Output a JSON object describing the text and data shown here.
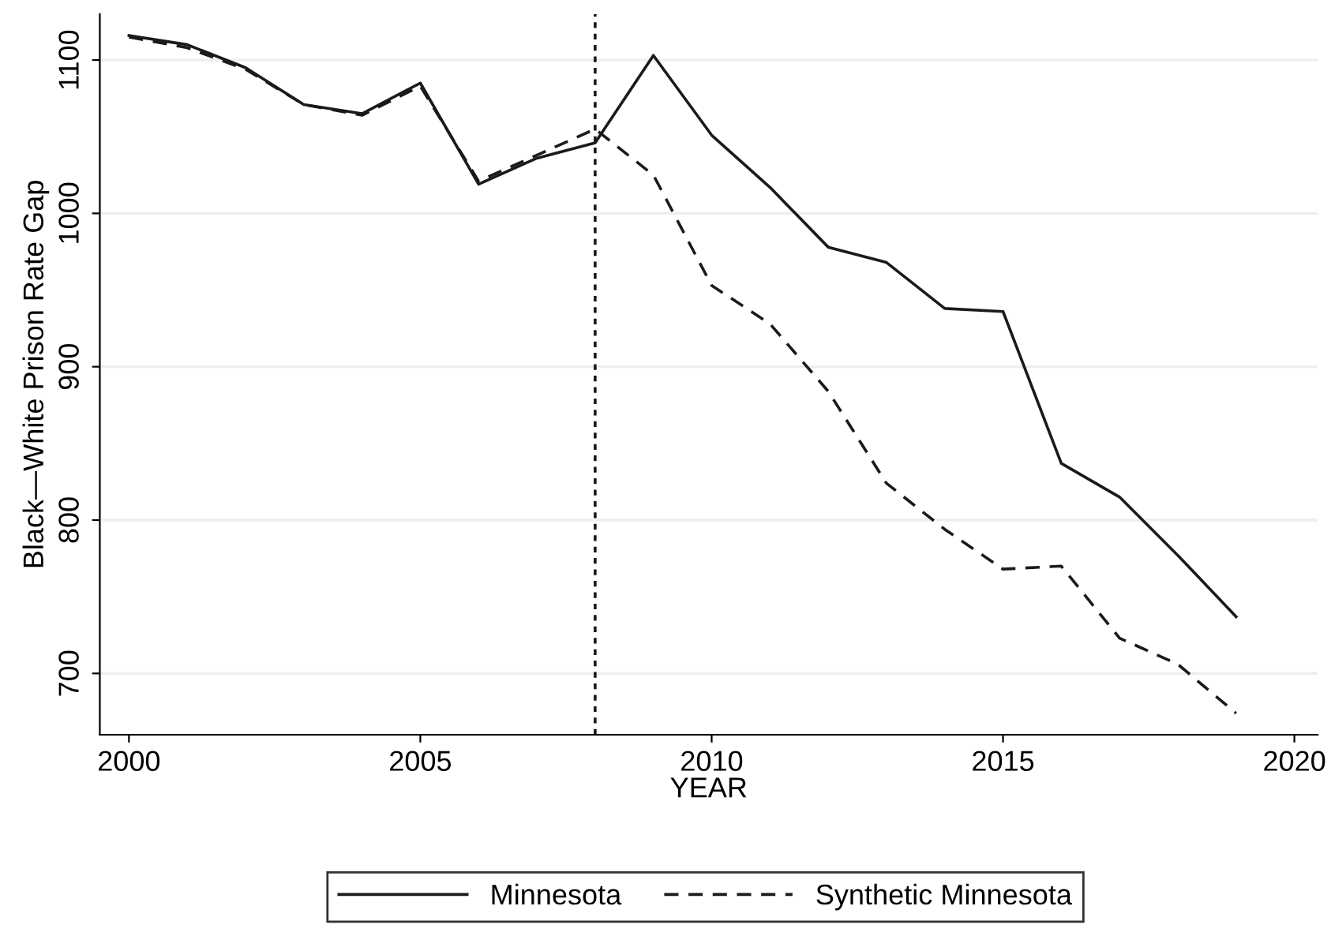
{
  "chart_data": {
    "type": "line",
    "xlabel": "YEAR",
    "ylabel": "Black—White Prison Rate Gap",
    "x": [
      2000,
      2001,
      2002,
      2003,
      2004,
      2005,
      2006,
      2007,
      2008,
      2009,
      2010,
      2011,
      2012,
      2013,
      2014,
      2015,
      2016,
      2017,
      2018,
      2019
    ],
    "series": [
      {
        "name": "Minnesota",
        "color": "#1a1a1a",
        "line_style": "solid",
        "values": [
          1116,
          1110,
          1095,
          1071,
          1065,
          1085,
          1019,
          1036,
          1046,
          1103,
          1051,
          1017,
          978,
          968,
          938,
          936,
          837,
          815,
          777,
          737
        ]
      },
      {
        "name": "Synthetic Minnesota",
        "color": "#1a1a1a",
        "line_style": "dashed",
        "values": [
          1115,
          1108,
          1094,
          1071,
          1064,
          1083,
          1021,
          1038,
          1055,
          1025,
          953,
          928,
          884,
          824,
          794,
          768,
          770,
          723,
          706,
          674
        ]
      }
    ],
    "xlim": [
      1999.5,
      2020.4
    ],
    "ylim": [
      660,
      1130
    ],
    "xticks": [
      2000,
      2005,
      2010,
      2015,
      2020
    ],
    "yticks": [
      700,
      800,
      900,
      1000,
      1100
    ],
    "ref_lines": [
      {
        "axis": "x",
        "value": 2008,
        "color": "#1a1a1a",
        "line_style": "dotted"
      }
    ],
    "grid": "y",
    "legend": "bottom",
    "marker": "none"
  }
}
